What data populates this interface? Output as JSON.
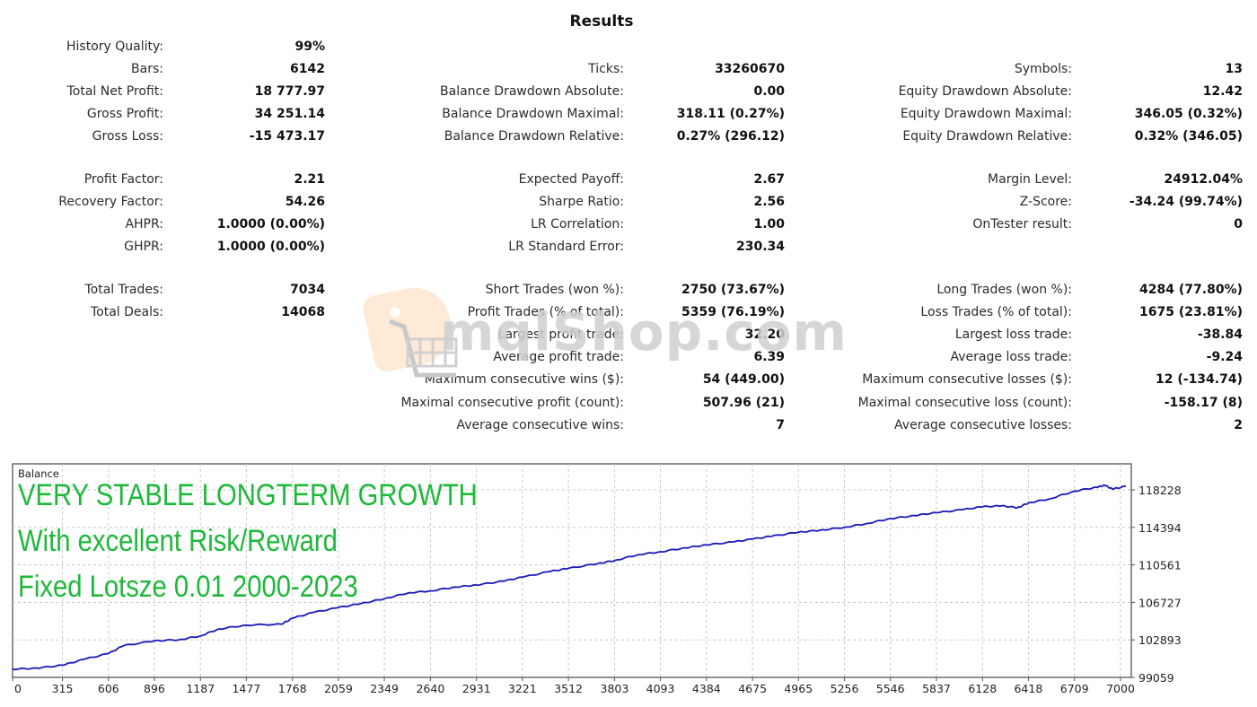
{
  "title": "Results",
  "stats": {
    "col1": [
      {
        "label": "History Quality:",
        "value": "99%"
      },
      {
        "label": "Bars:",
        "value": "6142"
      },
      {
        "label": "Total Net Profit:",
        "value": "18 777.97"
      },
      {
        "label": "Gross Profit:",
        "value": "34 251.14"
      },
      {
        "label": "Gross Loss:",
        "value": "-15 473.17"
      },
      {
        "label": "Profit Factor:",
        "value": "2.21"
      },
      {
        "label": "Recovery Factor:",
        "value": "54.26"
      },
      {
        "label": "AHPR:",
        "value": "1.0000 (0.00%)"
      },
      {
        "label": "GHPR:",
        "value": "1.0000 (0.00%)"
      },
      {
        "label": "Total Trades:",
        "value": "7034"
      },
      {
        "label": "Total Deals:",
        "value": "14068"
      }
    ],
    "col2": [
      {
        "label": "Ticks:",
        "value": "33260670"
      },
      {
        "label": "Balance Drawdown Absolute:",
        "value": "0.00"
      },
      {
        "label": "Balance Drawdown Maximal:",
        "value": "318.11 (0.27%)"
      },
      {
        "label": "Balance Drawdown Relative:",
        "value": "0.27% (296.12)"
      },
      {
        "label": "Expected Payoff:",
        "value": "2.67"
      },
      {
        "label": "Sharpe Ratio:",
        "value": "2.56"
      },
      {
        "label": "LR Correlation:",
        "value": "1.00"
      },
      {
        "label": "LR Standard Error:",
        "value": "230.34"
      },
      {
        "label": "Short Trades (won %):",
        "value": "2750 (73.67%)"
      },
      {
        "label": "Profit Trades (% of total):",
        "value": "5359 (76.19%)"
      },
      {
        "label": "Largest profit trade:",
        "value": "32.20"
      },
      {
        "label": "Average profit trade:",
        "value": "6.39"
      },
      {
        "label": "Maximum consecutive wins ($):",
        "value": "54 (449.00)"
      },
      {
        "label": "Maximal consecutive profit (count):",
        "value": "507.96 (21)"
      },
      {
        "label": "Average consecutive wins:",
        "value": "7"
      }
    ],
    "col3": [
      {
        "label": "Symbols:",
        "value": "13"
      },
      {
        "label": "Equity Drawdown Absolute:",
        "value": "12.42"
      },
      {
        "label": "Equity Drawdown Maximal:",
        "value": "346.05 (0.32%)"
      },
      {
        "label": "Equity Drawdown Relative:",
        "value": "0.32% (346.05)"
      },
      {
        "label": "Margin Level:",
        "value": "24912.04%"
      },
      {
        "label": "Z-Score:",
        "value": "-34.24 (99.74%)"
      },
      {
        "label": "OnTester result:",
        "value": "0"
      },
      {
        "label": "Long Trades (won %):",
        "value": "4284 (77.80%)"
      },
      {
        "label": "Loss Trades (% of total):",
        "value": "1675 (23.81%)"
      },
      {
        "label": "Largest loss trade:",
        "value": "-38.84"
      },
      {
        "label": "Average loss trade:",
        "value": "-9.24"
      },
      {
        "label": "Maximum consecutive losses ($):",
        "value": "12 (-134.74)"
      },
      {
        "label": "Maximal consecutive loss (count):",
        "value": "-158.17 (8)"
      },
      {
        "label": "Average consecutive losses:",
        "value": "2"
      }
    ]
  },
  "watermark": {
    "text": "mqlShop.com",
    "tag_color": "#fde3c8"
  },
  "promo": {
    "line1": "VERY STABLE LONGTERM GROWTH",
    "line2": "With excellent Risk/Reward",
    "line3": "Fixed Lotsze 0.01 2000-2023",
    "color": "#1db83a"
  },
  "chart_data": {
    "type": "line",
    "title": "Balance",
    "xlabel": "",
    "ylabel": "",
    "xlim": [
      0,
      7034
    ],
    "ylim": [
      99059,
      119500
    ],
    "grid": true,
    "line_color": "#1a1aba",
    "x_ticks": [
      0,
      315,
      606,
      896,
      1187,
      1477,
      1768,
      2059,
      2349,
      2640,
      2931,
      3221,
      3512,
      3803,
      4093,
      4384,
      4675,
      4965,
      5256,
      5546,
      5837,
      6128,
      6418,
      6709,
      7000
    ],
    "y_ticks": [
      99059,
      102893,
      106727,
      110561,
      114394,
      118228
    ],
    "series": [
      {
        "name": "Balance",
        "x": [
          0,
          150,
          315,
          450,
          606,
          700,
          896,
          1050,
          1187,
          1300,
          1477,
          1700,
          1768,
          1900,
          2059,
          2200,
          2349,
          2500,
          2640,
          2800,
          2931,
          3100,
          3221,
          3400,
          3512,
          3700,
          3803,
          3950,
          4093,
          4250,
          4384,
          4550,
          4675,
          4800,
          4965,
          5100,
          5256,
          5400,
          5546,
          5700,
          5837,
          6000,
          6128,
          6250,
          6350,
          6418,
          6550,
          6709,
          6850,
          6900,
          6950,
          7034
        ],
        "values": [
          99900,
          100000,
          100300,
          100900,
          101500,
          102300,
          102800,
          102900,
          103300,
          104000,
          104400,
          104500,
          105100,
          105700,
          106200,
          106600,
          107100,
          107700,
          107900,
          108300,
          108500,
          108900,
          109300,
          109900,
          110200,
          110700,
          111000,
          111600,
          111900,
          112300,
          112600,
          112900,
          113200,
          113500,
          113900,
          114100,
          114400,
          114800,
          115300,
          115600,
          115900,
          116200,
          116500,
          116600,
          116400,
          116900,
          117300,
          118100,
          118500,
          118700,
          118300,
          118600
        ]
      }
    ]
  }
}
